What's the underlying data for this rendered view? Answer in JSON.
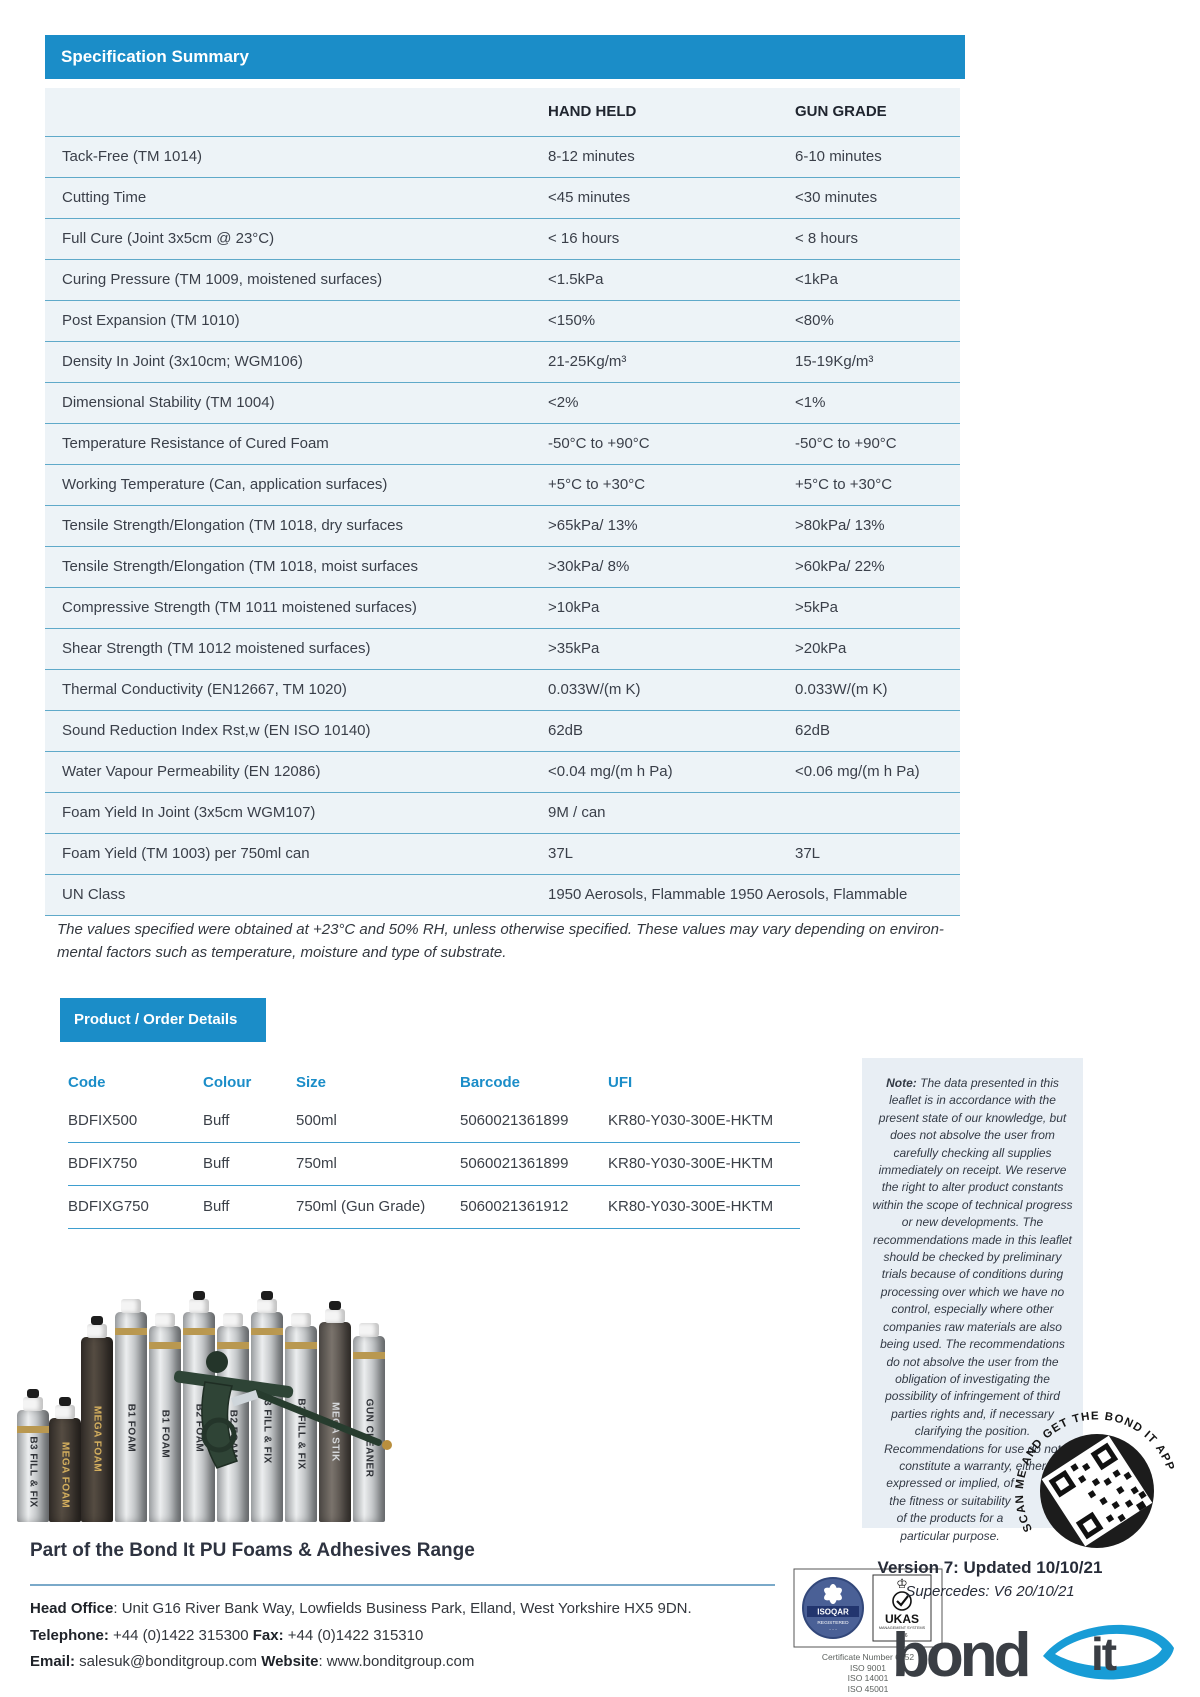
{
  "colors": {
    "brand_blue": "#1b8dc8",
    "table_bg": "#edf3f7",
    "table_divider": "#5fa9c9",
    "note_bg": "#e8eef4",
    "logo_blue": "#189cd6",
    "logo_dark": "#3a3e44"
  },
  "spec_summary": {
    "title": "Specification Summary",
    "col_headers": {
      "hand_held": "HAND HELD",
      "gun_grade": "GUN GRADE"
    },
    "rows": [
      {
        "label": "Tack-Free (TM 1014)",
        "hand_held": "8-12 minutes",
        "gun_grade": "6-10 minutes"
      },
      {
        "label": "Cutting Time",
        "hand_held": "<45 minutes",
        "gun_grade": "<30 minutes"
      },
      {
        "label": "Full Cure (Joint 3x5cm @ 23°C)",
        "hand_held": "< 16 hours",
        "gun_grade": "< 8 hours"
      },
      {
        "label": "Curing Pressure (TM 1009, moistened surfaces)",
        "hand_held": "<1.5kPa",
        "gun_grade": "<1kPa"
      },
      {
        "label": "Post Expansion (TM 1010)",
        "hand_held": "<150%",
        "gun_grade": "<80%"
      },
      {
        "label": "Density In Joint (3x10cm; WGM106)",
        "hand_held": "21-25Kg/m³",
        "gun_grade": "15-19Kg/m³"
      },
      {
        "label": "Dimensional Stability (TM 1004)",
        "hand_held": "<2%",
        "gun_grade": "<1%"
      },
      {
        "label": "Temperature Resistance of Cured Foam",
        "hand_held": "-50°C to +90°C",
        "gun_grade": "-50°C to +90°C"
      },
      {
        "label": "Working Temperature (Can, application surfaces)",
        "hand_held": "+5°C to +30°C",
        "gun_grade": "+5°C to +30°C"
      },
      {
        "label": "Tensile Strength/Elongation (TM 1018, dry surfaces",
        "hand_held": ">65kPa/ 13%",
        "gun_grade": ">80kPa/ 13%"
      },
      {
        "label": "Tensile Strength/Elongation (TM 1018, moist surfaces",
        "hand_held": ">30kPa/ 8%",
        "gun_grade": ">60kPa/ 22%"
      },
      {
        "label": "Compressive Strength (TM 1011 moistened surfaces)",
        "hand_held": ">10kPa",
        "gun_grade": ">5kPa"
      },
      {
        "label": "Shear Strength (TM 1012 moistened surfaces)",
        "hand_held": ">35kPa",
        "gun_grade": ">20kPa"
      },
      {
        "label": "Thermal Conductivity (EN12667, TM 1020)",
        "hand_held": "0.033W/(m K)",
        "gun_grade": "0.033W/(m K)"
      },
      {
        "label": "Sound Reduction Index Rst,w (EN ISO 10140)",
        "hand_held": "62dB",
        "gun_grade": "62dB"
      },
      {
        "label": "Water Vapour Permeability (EN 12086)",
        "hand_held": "<0.04 mg/(m h Pa)",
        "gun_grade": "<0.06 mg/(m h Pa)"
      },
      {
        "label": "Foam Yield In Joint (3x5cm WGM107)",
        "hand_held": "9M / can",
        "gun_grade": ""
      },
      {
        "label": "Foam Yield (TM 1003) per 750ml can",
        "hand_held": "37L",
        "gun_grade": "37L"
      },
      {
        "label": "UN Class",
        "hand_held": "1950 Aerosols, Flammable",
        "gun_grade": "1950 Aerosols, Flammable",
        "combined": "1950 Aerosols, Flammable 1950 Aerosols, Flammable"
      }
    ],
    "footnote_line1": "The values specified were obtained at +23°C and 50% RH, unless otherwise specified. These values may vary depending on environ-",
    "footnote_line2": "mental factors such as temperature, moisture and type of substrate."
  },
  "product_order": {
    "title": "Product / Order Details",
    "headers": {
      "code": "Code",
      "colour": "Colour",
      "size": "Size",
      "barcode": "Barcode",
      "ufi": "UFI"
    },
    "rows": [
      {
        "code": "BDFIX500",
        "colour": "Buff",
        "size": "500ml",
        "barcode": "5060021361899",
        "ufi": "KR80-Y030-300E-HKTM"
      },
      {
        "code": "BDFIX750",
        "colour": "Buff",
        "size": "750ml",
        "barcode": "5060021361899",
        "ufi": "KR80-Y030-300E-HKTM"
      },
      {
        "code": "BDFIXG750",
        "colour": "Buff",
        "size": "750ml (Gun Grade)",
        "barcode": "5060021361912",
        "ufi": "KR80-Y030-300E-HKTM"
      }
    ]
  },
  "note_panel": {
    "label": "Note:",
    "body": " The data presented in this leaflet is in accordance with the present state of our knowledge, but does not absolve the user from carefully checking all supplies immediately on receipt. We reserve the right to alter product constants within the scope of technical progress or new developments. The recommendations made in this leaflet should be checked by preliminary trials because of conditions during processing over which we have no control, especially where other companies raw materials are also being used. The recommendations do not absolve the user from the obligation of investigating the possibility of infringement of third parties rights and, if necessary clarifying the position. Recommendations for use do not constitute a warranty, either",
    "tail": "expressed or implied, of the fitness or suitability of the products for a particular purpose."
  },
  "qr_badge": {
    "text": "SCAN ME AND GET THE BOND IT APP"
  },
  "products_range": {
    "caption": "Part of the Bond It PU Foams & Adhesives Range",
    "cans": [
      {
        "label": "B3 FILL & FIX",
        "tone": "silver"
      },
      {
        "label": "MEGA FOAM",
        "tone": "golddark"
      },
      {
        "label": "MEGA FOAM",
        "tone": "golddark"
      },
      {
        "label": "B1 FOAM",
        "tone": "silver"
      },
      {
        "label": "B1 FOAM",
        "tone": "silver"
      },
      {
        "label": "B2 FOAM",
        "tone": "silver"
      },
      {
        "label": "B2 FOAM",
        "tone": "silver"
      },
      {
        "label": "B3 FILL & FIX",
        "tone": "silver"
      },
      {
        "label": "B3 FILL & FIX",
        "tone": "silver"
      },
      {
        "label": "MEGA STIK",
        "tone": "dark"
      },
      {
        "label": "GUN CLEANER",
        "tone": "silver"
      }
    ]
  },
  "footer": {
    "head_office_label": "Head Office",
    "head_office": ": Unit G16 River Bank Way, Lowfields Business Park, Elland, West Yorkshire HX5 9DN.",
    "telephone_label": "Telephone:",
    "telephone": " +44 (0)1422 315300 ",
    "fax_label": "Fax:",
    "fax": " +44 (0)1422 315310",
    "email_label": "Email:",
    "email": " salesuk@bonditgroup.com ",
    "website_label": "Website",
    "website": ": www.bonditgroup.com",
    "version": "Version 7: Updated 10/10/21",
    "supercedes": "Supercedes: V6 20/10/21"
  },
  "certification": {
    "isoqar_name": "ISOQAR",
    "isoqar_sub": "REGISTERED",
    "ukas_name": "UKAS",
    "ukas_sub": "MANAGEMENT SYSTEMS",
    "ukas_code": "0026",
    "certificate": "Certificate Number 6152",
    "standards_1": "ISO 9001",
    "standards_2": "ISO 14001",
    "standards_3": "ISO 45001"
  },
  "logo": {
    "word": "bond",
    "suffix": "it"
  }
}
